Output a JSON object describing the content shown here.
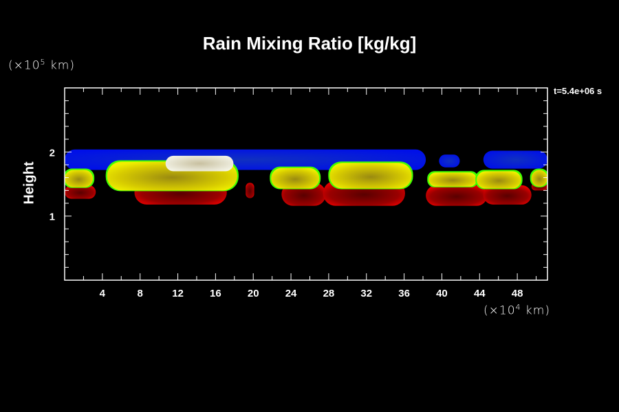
{
  "chart_data": {
    "type": "heatmap",
    "title": "Rain Mixing Ratio [kg/kg]",
    "xlabel": "",
    "ylabel": "Height",
    "x_unit": "(×10⁴ km)",
    "x_unit_base": "(×10",
    "x_unit_exp": "4",
    "x_unit_tail": " km)",
    "y_unit_base": "(×10",
    "y_unit_exp": "5",
    "y_unit_tail": " km)",
    "annotation": "t=5.4e+06 s",
    "xlim": [
      0,
      51.2
    ],
    "ylim": [
      0,
      3
    ],
    "x_ticks": [
      4,
      8,
      12,
      16,
      20,
      24,
      28,
      32,
      36,
      40,
      44,
      48
    ],
    "x_minor_step": 2,
    "y_ticks": [
      1,
      2
    ],
    "y_minor_step": 0.2,
    "colors": {
      "blue": "#0a1ee0",
      "yellow": "#e8e000",
      "green": "#40ff00",
      "red": "#e00000",
      "dark_red": "#7a0000",
      "white": "#f0f0e0"
    },
    "regions": [
      {
        "kind": "blue",
        "x": [
          0,
          38.3
        ],
        "y": [
          1.72,
          2.04
        ]
      },
      {
        "kind": "blue",
        "x": [
          39.7,
          41.9
        ],
        "y": [
          1.76,
          1.96
        ]
      },
      {
        "kind": "blue",
        "x": [
          44.4,
          51.2
        ],
        "y": [
          1.74,
          2.02
        ]
      },
      {
        "kind": "red",
        "x": [
          0,
          3.3
        ],
        "y": [
          1.27,
          1.48
        ]
      },
      {
        "kind": "yellow",
        "x": [
          0,
          3.0
        ],
        "y": [
          1.45,
          1.72
        ]
      },
      {
        "kind": "red",
        "x": [
          7.4,
          17.2
        ],
        "y": [
          1.18,
          1.56
        ]
      },
      {
        "kind": "yellow",
        "x": [
          4.5,
          18.3
        ],
        "y": [
          1.4,
          1.85
        ]
      },
      {
        "kind": "white",
        "x": [
          10.7,
          17.9
        ],
        "y": [
          1.7,
          1.94
        ]
      },
      {
        "kind": "red",
        "x": [
          19.2,
          20.1
        ],
        "y": [
          1.28,
          1.52
        ]
      },
      {
        "kind": "red",
        "x": [
          23.0,
          27.7
        ],
        "y": [
          1.16,
          1.52
        ]
      },
      {
        "kind": "yellow",
        "x": [
          21.9,
          27.0
        ],
        "y": [
          1.43,
          1.75
        ]
      },
      {
        "kind": "red",
        "x": [
          27.4,
          36.1
        ],
        "y": [
          1.16,
          1.55
        ]
      },
      {
        "kind": "yellow",
        "x": [
          28.1,
          36.8
        ],
        "y": [
          1.43,
          1.83
        ]
      },
      {
        "kind": "red",
        "x": [
          38.3,
          44.8
        ],
        "y": [
          1.16,
          1.48
        ]
      },
      {
        "kind": "yellow",
        "x": [
          38.6,
          43.7
        ],
        "y": [
          1.46,
          1.68
        ]
      },
      {
        "kind": "red",
        "x": [
          44.4,
          49.5
        ],
        "y": [
          1.18,
          1.48
        ]
      },
      {
        "kind": "yellow",
        "x": [
          43.7,
          48.4
        ],
        "y": [
          1.43,
          1.7
        ]
      },
      {
        "kind": "red",
        "x": [
          49.5,
          51.2
        ],
        "y": [
          1.4,
          1.52
        ]
      },
      {
        "kind": "yellow",
        "x": [
          49.5,
          51.2
        ],
        "y": [
          1.46,
          1.72
        ]
      }
    ]
  }
}
